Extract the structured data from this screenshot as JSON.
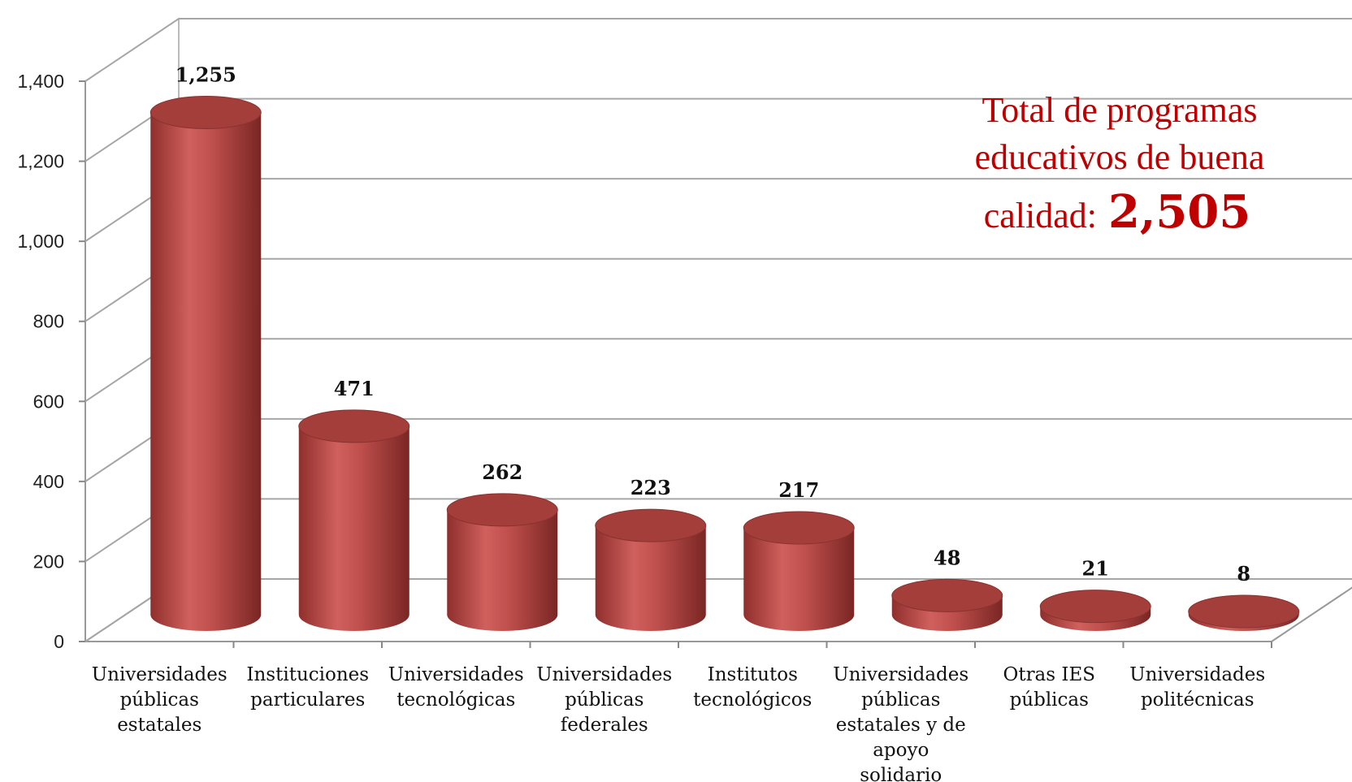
{
  "chart_data": {
    "type": "bar",
    "style": "3d-cylinder",
    "categories": [
      [
        "Universidades",
        "públicas",
        "estatales"
      ],
      [
        "Instituciones",
        "particulares"
      ],
      [
        "Universidades",
        "tecnológicas"
      ],
      [
        "Universidades",
        "públicas",
        "federales"
      ],
      [
        "Institutos",
        "tecnológicos"
      ],
      [
        "Universidades",
        "públicas",
        "estatales y de",
        "apoyo",
        "solidario"
      ],
      [
        "Otras IES",
        "públicas"
      ],
      [
        "Universidades",
        "politécnicas"
      ]
    ],
    "values": [
      1255,
      471,
      262,
      223,
      217,
      48,
      21,
      8
    ],
    "data_labels": [
      "1,255",
      "471",
      "262",
      "223",
      "217",
      "48",
      "21",
      "8"
    ],
    "ylim": [
      0,
      1400
    ],
    "yticks": [
      0,
      200,
      400,
      600,
      800,
      1000,
      1200,
      1400
    ],
    "ytick_labels": [
      "0",
      "200",
      "400",
      "600",
      "800",
      "1,000",
      "1,200",
      "1,400"
    ],
    "grid": true,
    "bar_color": "#C0504D",
    "annotation": {
      "lines": [
        "Total de programas",
        "educativos de buena"
      ],
      "last_line_prefix": "calidad:",
      "value": "2,505",
      "color": "#C00000"
    }
  }
}
